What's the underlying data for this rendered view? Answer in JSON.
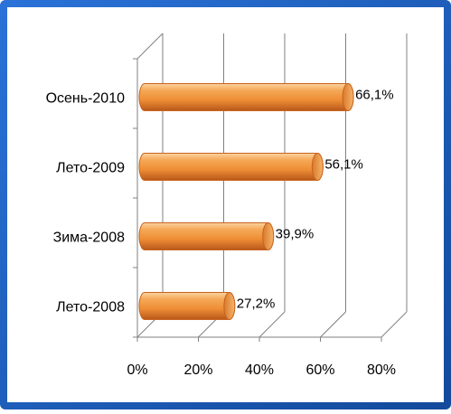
{
  "chart_data": {
    "type": "bar",
    "orientation": "horizontal",
    "categories": [
      "Осень-2010",
      "Лето-2009",
      "Зима-2008",
      "Лето-2008"
    ],
    "values": [
      66.1,
      56.1,
      39.9,
      27.2
    ],
    "value_labels": [
      "66,1%",
      "56,1%",
      "39,9%",
      "27,2%"
    ],
    "xlim": [
      0,
      80
    ],
    "x_ticks": [
      0,
      20,
      40,
      60,
      80
    ],
    "x_tick_labels": [
      "0%",
      "20%",
      "40%",
      "60%",
      "80%"
    ],
    "grid": true,
    "legend": "none",
    "colors": {
      "bar": "#f0963c",
      "bar_dark": "#c8641e",
      "bar_light": "#fac88c",
      "frame": "#1f5fbf",
      "grid": "#808080"
    }
  }
}
